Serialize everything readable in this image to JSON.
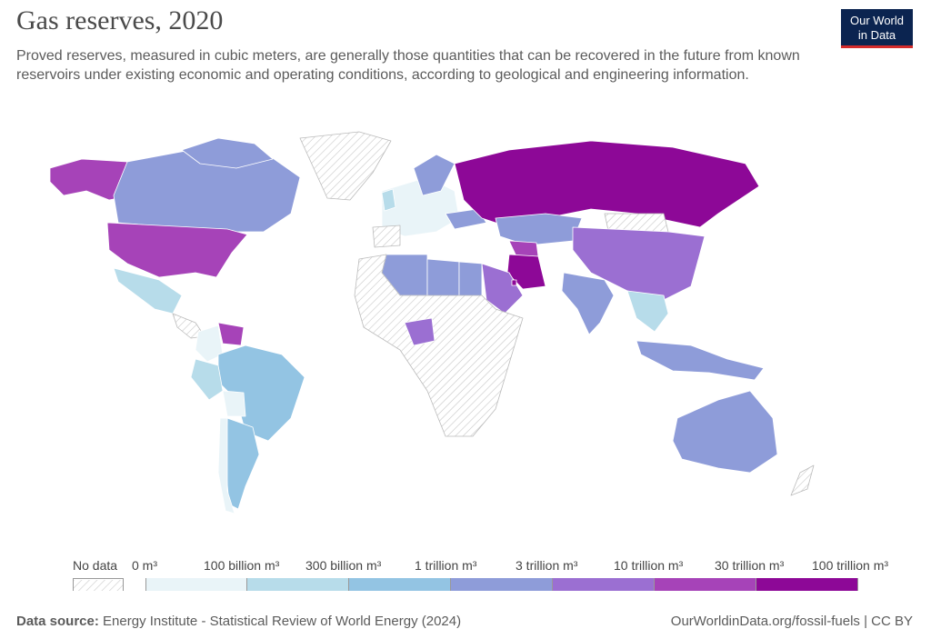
{
  "header": {
    "title": "Gas reserves, 2020",
    "subtitle": "Proved reserves, measured in cubic meters, are generally those quantities that can be recovered in the future from known reservoirs under existing economic and operating conditions, according to geological and engineering information."
  },
  "logo": {
    "line1": "Our World",
    "line2": "in Data",
    "bg": "#0b2450",
    "accent": "#d42b2b"
  },
  "legend": {
    "no_data": "No data",
    "ticks": [
      "0 m³",
      "100 billion m³",
      "300 billion m³",
      "1 trillion m³",
      "3 trillion m³",
      "10 trillion m³",
      "30 trillion m³",
      "100 trillion m³"
    ],
    "colors": [
      "#e9f4f8",
      "#b7dcea",
      "#93c4e3",
      "#8e9cd9",
      "#9b6fd2",
      "#a643b8",
      "#8d0897"
    ],
    "no_data_color": "hatched"
  },
  "footer": {
    "source_label": "Data source:",
    "source_text": "Energy Institute - Statistical Review of World Energy (2024)",
    "url": "OurWorldinData.org/fossil-fuels | CC BY"
  }
}
